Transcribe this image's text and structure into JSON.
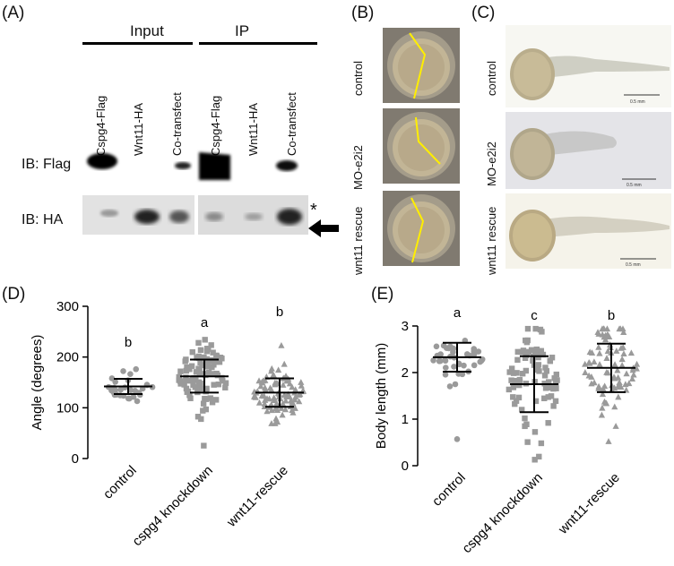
{
  "panels": {
    "a": {
      "label": "(A)",
      "groups": [
        "Input",
        "IP"
      ],
      "lanes": [
        "Cspg4-Flag",
        "Wnt11-HA",
        "Co-transfect",
        "Cspg4-Flag",
        "Wnt11-HA",
        "Co-transfect"
      ],
      "blots": [
        "IB: Flag",
        "IB: HA"
      ],
      "asterisk": "*"
    },
    "b": {
      "label": "(B)",
      "rows": [
        "control",
        "MO-e2i2",
        "wnt11 rescue"
      ]
    },
    "c": {
      "label": "(C)",
      "rows": [
        "control",
        "MO-e2i2",
        "wnt11 rescue"
      ],
      "scale_bar": [
        "0.5 mm",
        "0.5 mm",
        "0.5 mm"
      ]
    },
    "d": {
      "label": "(D)"
    },
    "e": {
      "label": "(E)"
    }
  },
  "chart_data": [
    {
      "type": "scatter",
      "panel": "D",
      "ylabel": "Angle (degrees)",
      "categories": [
        "control",
        "cspg4 knockdown",
        "wnt11-rescue"
      ],
      "ylim": [
        0,
        300
      ],
      "yticks": [
        0,
        100,
        200,
        300
      ],
      "series": [
        {
          "marker": "circle",
          "mean": 142,
          "sd_low": 127,
          "sd_high": 157,
          "letter": "b",
          "count": 30
        },
        {
          "marker": "square",
          "mean": 162,
          "sd_low": 130,
          "sd_high": 195,
          "letter": "a",
          "count": 90
        },
        {
          "marker": "triangle",
          "mean": 130,
          "sd_low": 102,
          "sd_high": 158,
          "letter": "b",
          "count": 90
        }
      ],
      "colors": {
        "points": "#9a9a9a",
        "bars": "#000000"
      }
    },
    {
      "type": "scatter",
      "panel": "E",
      "ylabel": "Body length (mm)",
      "categories": [
        "control",
        "cspg4 knockdown",
        "wnt11-rescue"
      ],
      "ylim": [
        0,
        3
      ],
      "yticks": [
        0,
        1,
        2,
        3
      ],
      "series": [
        {
          "marker": "circle",
          "mean": 2.33,
          "sd_low": 2.02,
          "sd_high": 2.64,
          "letter": "a",
          "count": 40
        },
        {
          "marker": "square",
          "mean": 1.75,
          "sd_low": 1.15,
          "sd_high": 2.35,
          "letter": "c",
          "count": 80
        },
        {
          "marker": "triangle",
          "mean": 2.1,
          "sd_low": 1.58,
          "sd_high": 2.62,
          "letter": "b",
          "count": 80
        }
      ],
      "colors": {
        "points": "#9a9a9a",
        "bars": "#000000"
      }
    }
  ]
}
